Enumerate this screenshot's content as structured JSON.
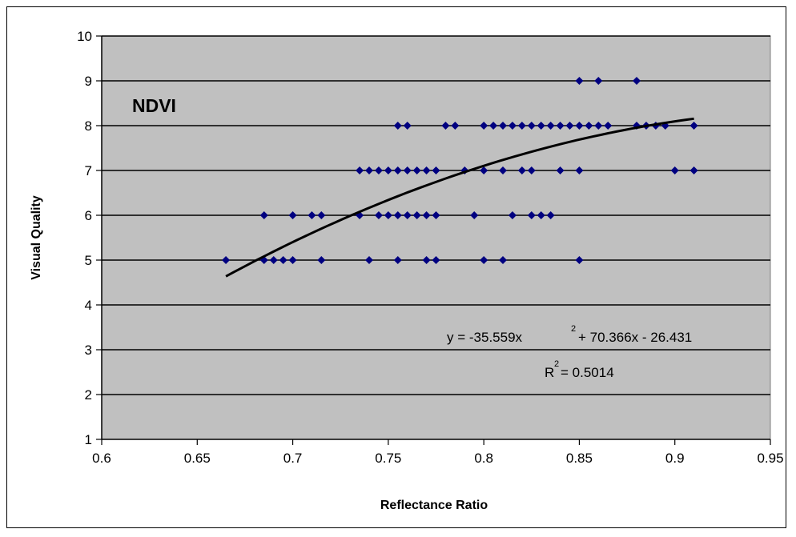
{
  "chart_data": {
    "type": "scatter",
    "title": "",
    "annotation_label": "NDVI",
    "xlabel": "Reflectance Ratio",
    "ylabel": "Visual Quality",
    "xlim": [
      0.6,
      0.95
    ],
    "ylim": [
      1,
      10
    ],
    "x_ticks": [
      "0.6",
      "0.65",
      "0.7",
      "0.75",
      "0.8",
      "0.85",
      "0.9",
      "0.95"
    ],
    "y_ticks": [
      "1",
      "2",
      "3",
      "4",
      "5",
      "6",
      "7",
      "8",
      "9",
      "10"
    ],
    "grid": "horizontal",
    "background_color": "#c0c0c0",
    "marker_color": "#000080",
    "marker": "diamond",
    "trendline": {
      "type": "polynomial",
      "coefficients": [
        -35.559,
        70.366,
        -26.431
      ],
      "x_range": [
        0.665,
        0.91
      ],
      "color": "#000000",
      "equation_prefix": "y = -35.559x",
      "equation_exp": "2",
      "equation_suffix": " + 70.366x - 26.431",
      "r2_prefix": "R",
      "r2_exp": "2",
      "r2_suffix": " = 0.5014"
    },
    "points": [
      [
        0.665,
        5
      ],
      [
        0.685,
        5
      ],
      [
        0.69,
        5
      ],
      [
        0.695,
        5
      ],
      [
        0.7,
        5
      ],
      [
        0.715,
        5
      ],
      [
        0.74,
        5
      ],
      [
        0.755,
        5
      ],
      [
        0.77,
        5
      ],
      [
        0.775,
        5
      ],
      [
        0.8,
        5
      ],
      [
        0.81,
        5
      ],
      [
        0.85,
        5
      ],
      [
        0.685,
        6
      ],
      [
        0.7,
        6
      ],
      [
        0.71,
        6
      ],
      [
        0.715,
        6
      ],
      [
        0.735,
        6
      ],
      [
        0.745,
        6
      ],
      [
        0.75,
        6
      ],
      [
        0.755,
        6
      ],
      [
        0.76,
        6
      ],
      [
        0.765,
        6
      ],
      [
        0.77,
        6
      ],
      [
        0.775,
        6
      ],
      [
        0.795,
        6
      ],
      [
        0.815,
        6
      ],
      [
        0.825,
        6
      ],
      [
        0.83,
        6
      ],
      [
        0.835,
        6
      ],
      [
        0.735,
        7
      ],
      [
        0.74,
        7
      ],
      [
        0.745,
        7
      ],
      [
        0.75,
        7
      ],
      [
        0.755,
        7
      ],
      [
        0.76,
        7
      ],
      [
        0.765,
        7
      ],
      [
        0.77,
        7
      ],
      [
        0.775,
        7
      ],
      [
        0.79,
        7
      ],
      [
        0.8,
        7
      ],
      [
        0.81,
        7
      ],
      [
        0.82,
        7
      ],
      [
        0.825,
        7
      ],
      [
        0.84,
        7
      ],
      [
        0.85,
        7
      ],
      [
        0.9,
        7
      ],
      [
        0.91,
        7
      ],
      [
        0.755,
        8
      ],
      [
        0.76,
        8
      ],
      [
        0.78,
        8
      ],
      [
        0.785,
        8
      ],
      [
        0.8,
        8
      ],
      [
        0.805,
        8
      ],
      [
        0.81,
        8
      ],
      [
        0.815,
        8
      ],
      [
        0.82,
        8
      ],
      [
        0.825,
        8
      ],
      [
        0.83,
        8
      ],
      [
        0.835,
        8
      ],
      [
        0.84,
        8
      ],
      [
        0.845,
        8
      ],
      [
        0.85,
        8
      ],
      [
        0.855,
        8
      ],
      [
        0.86,
        8
      ],
      [
        0.865,
        8
      ],
      [
        0.88,
        8
      ],
      [
        0.885,
        8
      ],
      [
        0.89,
        8
      ],
      [
        0.895,
        8
      ],
      [
        0.91,
        8
      ],
      [
        0.85,
        9
      ],
      [
        0.86,
        9
      ],
      [
        0.88,
        9
      ]
    ]
  }
}
